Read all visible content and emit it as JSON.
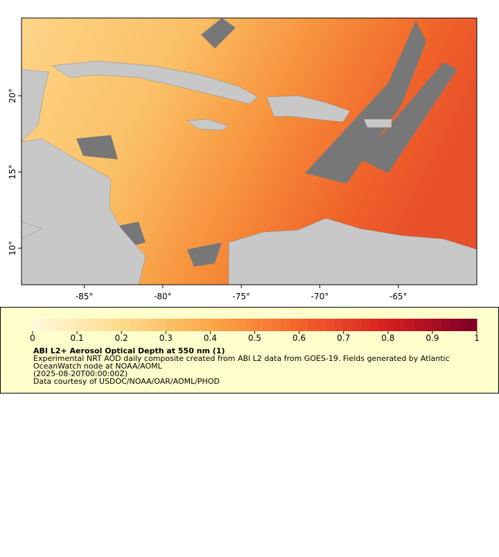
{
  "map": {
    "xlim": [
      -89,
      -60
    ],
    "ylim": [
      7.6,
      25.1
    ],
    "xticks": [
      {
        "value": -85,
        "label": "-85°"
      },
      {
        "value": -80,
        "label": "-80°"
      },
      {
        "value": -75,
        "label": "-75°"
      },
      {
        "value": -70,
        "label": "-70°"
      },
      {
        "value": -65,
        "label": "-65°"
      }
    ],
    "yticks": [
      {
        "value": 10,
        "label": "10°"
      },
      {
        "value": 15,
        "label": "15°"
      },
      {
        "value": 20,
        "label": "20°"
      }
    ]
  },
  "colorbar": {
    "lim": [
      0,
      1
    ],
    "ticks": [
      0,
      0.1,
      0.2,
      0.3,
      0.4,
      0.5,
      0.6,
      0.7,
      0.8,
      0.9,
      1
    ]
  },
  "legend": {
    "title": "ABI L2+ Aerosol Optical Depth at 550 nm (1)",
    "lines": [
      "Experimental NRT AOD daily composite created from ABI L2 data from GOES-19. Fields generated by Atlantic",
      "OceanWatch node at NOAA/AOML",
      "(2025-08-20T00:00:00Z)",
      "Data courtesy of USDOC/NOAA/OAR/AOML/PHOD"
    ]
  }
}
